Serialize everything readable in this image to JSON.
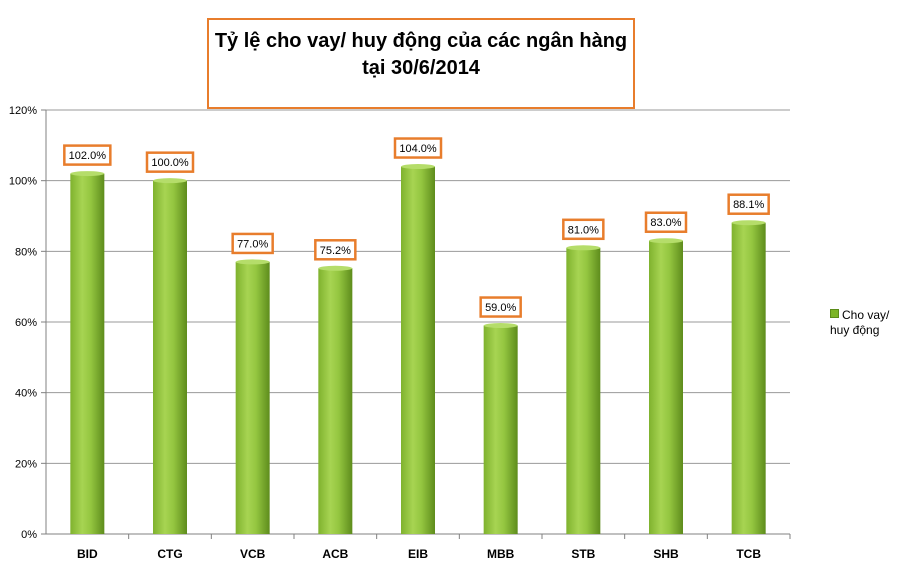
{
  "title": {
    "line1": "Tỷ lệ cho vay/ huy động của các ngân hàng",
    "line2": "tại 30/6/2014"
  },
  "colors": {
    "bar_light": "#9ccc45",
    "bar_dark": "#6e9f24",
    "label_border": "#e87d2c",
    "grid": "#9a9a9a"
  },
  "chart_data": {
    "type": "bar",
    "categories": [
      "BID",
      "CTG",
      "VCB",
      "ACB",
      "EIB",
      "MBB",
      "STB",
      "SHB",
      "TCB"
    ],
    "series": [
      {
        "name": "Cho vay/ huy động",
        "values": [
          102.0,
          100.0,
          77.0,
          75.2,
          104.0,
          59.0,
          81.0,
          83.0,
          88.1
        ],
        "data_labels": [
          "102.0%",
          "100.0%",
          "77.0%",
          "75.2%",
          "104.0%",
          "59.0%",
          "81.0%",
          "83.0%",
          "88.1%"
        ]
      }
    ],
    "ylim": [
      0,
      120
    ],
    "yticks": [
      "0%",
      "20%",
      "40%",
      "60%",
      "80%",
      "100%",
      "120%"
    ],
    "ytick_values": [
      0,
      20,
      40,
      60,
      80,
      100,
      120
    ],
    "grid": true,
    "legend_position": "right",
    "legend_lines": [
      "Cho vay/",
      "huy động"
    ]
  }
}
